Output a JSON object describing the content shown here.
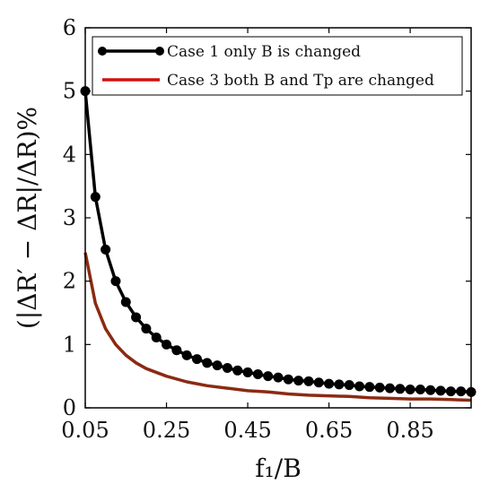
{
  "chart_data": {
    "type": "line",
    "xlabel": "f₁/B",
    "ylabel": "(|ΔR′ − ΔR|/ΔR)%",
    "xlim": [
      0.05,
      1.0
    ],
    "ylim": [
      0,
      6
    ],
    "xticks": [
      "0.05",
      "0.25",
      "0.45",
      "0.65",
      "0.85"
    ],
    "yticks": [
      "0",
      "1",
      "2",
      "3",
      "4",
      "5",
      "6"
    ],
    "legend_position": "top-right",
    "series": [
      {
        "name": "Case 1 only B is changed",
        "color": "#000000",
        "marker": "circle",
        "x": [
          0.05,
          0.075,
          0.1,
          0.125,
          0.15,
          0.175,
          0.2,
          0.225,
          0.25,
          0.275,
          0.3,
          0.325,
          0.35,
          0.375,
          0.4,
          0.425,
          0.45,
          0.475,
          0.5,
          0.525,
          0.55,
          0.575,
          0.6,
          0.625,
          0.65,
          0.675,
          0.7,
          0.725,
          0.75,
          0.775,
          0.8,
          0.825,
          0.85,
          0.875,
          0.9,
          0.925,
          0.95,
          0.975,
          1.0
        ],
        "y": [
          5.0,
          3.33,
          2.5,
          2.0,
          1.67,
          1.43,
          1.25,
          1.11,
          1.0,
          0.91,
          0.83,
          0.77,
          0.71,
          0.67,
          0.63,
          0.59,
          0.56,
          0.53,
          0.5,
          0.48,
          0.45,
          0.43,
          0.42,
          0.4,
          0.38,
          0.37,
          0.36,
          0.34,
          0.33,
          0.32,
          0.31,
          0.3,
          0.29,
          0.29,
          0.28,
          0.27,
          0.26,
          0.26,
          0.25
        ]
      },
      {
        "name": "Case 3 both B and Tp are changed",
        "color": "#8b2a12",
        "marker": "none",
        "x": [
          0.05,
          0.075,
          0.1,
          0.125,
          0.15,
          0.175,
          0.2,
          0.25,
          0.3,
          0.35,
          0.4,
          0.45,
          0.5,
          0.55,
          0.6,
          0.65,
          0.7,
          0.75,
          0.8,
          0.85,
          0.9,
          0.95,
          1.0
        ],
        "y": [
          2.45,
          1.65,
          1.25,
          1.0,
          0.83,
          0.71,
          0.62,
          0.5,
          0.41,
          0.35,
          0.31,
          0.27,
          0.25,
          0.22,
          0.2,
          0.19,
          0.18,
          0.16,
          0.15,
          0.14,
          0.14,
          0.13,
          0.12
        ]
      }
    ]
  }
}
